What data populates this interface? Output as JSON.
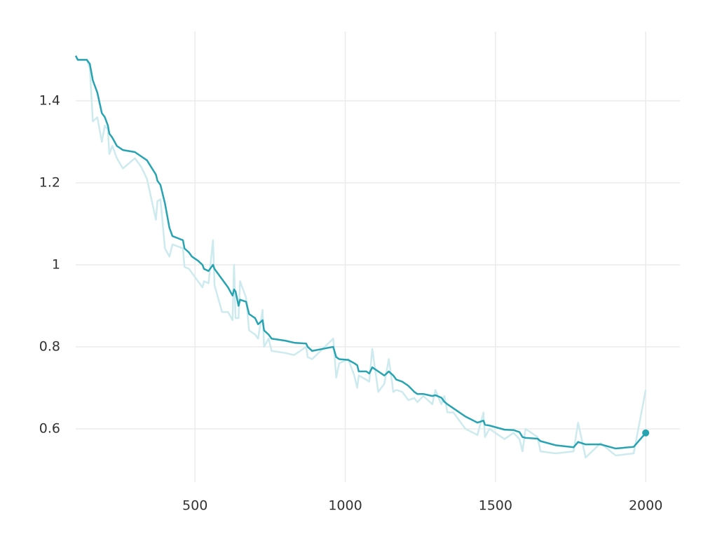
{
  "chart_data": {
    "type": "line",
    "x": [
      103,
      110,
      140,
      150,
      160,
      175,
      190,
      200,
      210,
      215,
      225,
      240,
      260,
      300,
      320,
      340,
      370,
      375,
      385,
      400,
      415,
      425,
      460,
      465,
      480,
      490,
      510,
      525,
      530,
      545,
      560,
      565,
      590,
      610,
      625,
      630,
      635,
      645,
      650,
      670,
      680,
      700,
      710,
      725,
      730,
      745,
      755,
      800,
      830,
      870,
      875,
      890,
      960,
      970,
      980,
      1010,
      1030,
      1040,
      1045,
      1070,
      1080,
      1090,
      1110,
      1130,
      1145,
      1160,
      1170,
      1190,
      1210,
      1230,
      1240,
      1260,
      1290,
      1300,
      1320,
      1330,
      1340,
      1360,
      1400,
      1440,
      1460,
      1465,
      1480,
      1530,
      1560,
      1580,
      1590,
      1600,
      1640,
      1650,
      1700,
      1760,
      1775,
      1800,
      1850,
      1900,
      1960,
      2000
    ],
    "series": [
      {
        "color": "#cdeaee",
        "values": [
          1.51,
          1.5,
          1.5,
          1.48,
          1.35,
          1.36,
          1.3,
          1.34,
          1.33,
          1.27,
          1.29,
          1.26,
          1.235,
          1.26,
          1.24,
          1.21,
          1.11,
          1.155,
          1.16,
          1.04,
          1.02,
          1.05,
          1.04,
          0.995,
          0.99,
          0.98,
          0.96,
          0.945,
          0.96,
          0.955,
          1.06,
          0.95,
          0.885,
          0.885,
          0.865,
          1.0,
          0.87,
          0.87,
          0.96,
          0.92,
          0.84,
          0.83,
          0.82,
          0.89,
          0.8,
          0.82,
          0.79,
          0.785,
          0.78,
          0.8,
          0.775,
          0.77,
          0.82,
          0.725,
          0.76,
          0.77,
          0.73,
          0.7,
          0.73,
          0.72,
          0.715,
          0.795,
          0.69,
          0.71,
          0.77,
          0.69,
          0.695,
          0.69,
          0.67,
          0.675,
          0.665,
          0.68,
          0.66,
          0.695,
          0.66,
          0.68,
          0.64,
          0.64,
          0.6,
          0.585,
          0.64,
          0.58,
          0.6,
          0.575,
          0.59,
          0.575,
          0.545,
          0.6,
          0.58,
          0.545,
          0.54,
          0.545,
          0.615,
          0.53,
          0.565,
          0.535,
          0.54,
          0.695
        ]
      },
      {
        "color": "#27a3b1",
        "values": [
          1.51,
          1.5,
          1.5,
          1.49,
          1.45,
          1.42,
          1.37,
          1.36,
          1.34,
          1.32,
          1.31,
          1.29,
          1.28,
          1.275,
          1.265,
          1.255,
          1.22,
          1.205,
          1.195,
          1.15,
          1.09,
          1.07,
          1.06,
          1.04,
          1.03,
          1.02,
          1.01,
          1.0,
          0.99,
          0.985,
          1.0,
          0.99,
          0.965,
          0.945,
          0.925,
          0.94,
          0.935,
          0.9,
          0.915,
          0.91,
          0.88,
          0.87,
          0.855,
          0.865,
          0.84,
          0.83,
          0.82,
          0.815,
          0.81,
          0.808,
          0.8,
          0.79,
          0.8,
          0.775,
          0.77,
          0.768,
          0.76,
          0.755,
          0.74,
          0.74,
          0.735,
          0.75,
          0.74,
          0.73,
          0.74,
          0.73,
          0.72,
          0.715,
          0.705,
          0.69,
          0.685,
          0.685,
          0.68,
          0.682,
          0.676,
          0.666,
          0.66,
          0.65,
          0.63,
          0.615,
          0.62,
          0.61,
          0.608,
          0.598,
          0.597,
          0.592,
          0.58,
          0.578,
          0.576,
          0.57,
          0.56,
          0.555,
          0.568,
          0.562,
          0.562,
          0.552,
          0.556,
          0.59
        ],
        "end_marker": true
      }
    ],
    "xlim": [
      103,
      2114
    ],
    "xticks": [
      500,
      1000,
      1500,
      2000
    ],
    "ylim": [
      0.47,
      1.569
    ],
    "yticks": [
      0.6,
      0.8,
      1,
      1.2,
      1.4
    ],
    "grid": true
  }
}
